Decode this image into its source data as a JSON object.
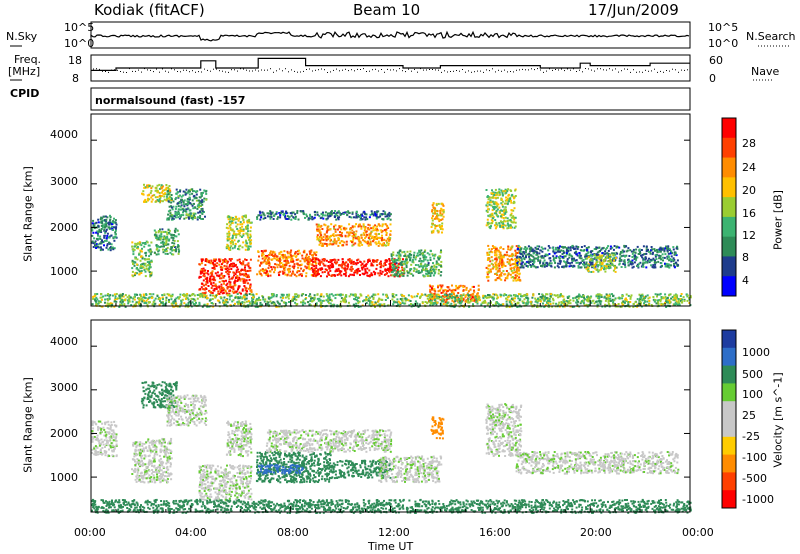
{
  "header": {
    "station": "Kodiak (fitACF)",
    "beam": "Beam 10",
    "date": "17/Jun/2009"
  },
  "summary": {
    "nsky_label": "N.Sky",
    "nsky_ticks": [
      "10^5",
      "10^0"
    ],
    "nsearch_label": "N.Search",
    "nsearch_ticks": [
      "10^5",
      "10^0"
    ],
    "freq_label_1": "Freq.",
    "freq_label_2": "[MHz]",
    "freq_ticks": [
      "18",
      "8"
    ],
    "nave_label": "Nave",
    "nave_ticks": [
      "60",
      "0"
    ],
    "cpid_label": "CPID",
    "cpid_text": "normalsound (fast) -157"
  },
  "power_panel": {
    "ylabel": "Slant Range [km]",
    "yticks": [
      "4000",
      "3000",
      "2000",
      "1000"
    ],
    "colorbar_label": "Power [dB]",
    "colorbar_ticks": [
      "28",
      "24",
      "20",
      "16",
      "12",
      "8",
      "4"
    ],
    "colorbar_colors": [
      "#ff0000",
      "#ff4000",
      "#ff8c00",
      "#ffc000",
      "#9acd32",
      "#3cb371",
      "#2e8b57",
      "#1e3c8c",
      "#0000ff"
    ]
  },
  "velocity_panel": {
    "ylabel": "Slant Range [km]",
    "yticks": [
      "4000",
      "3000",
      "2000",
      "1000"
    ],
    "colorbar_label": "Velocity [m s^-1]",
    "colorbar_ticks": [
      "1000",
      "500",
      "100",
      "25",
      "-25",
      "-100",
      "-500",
      "-1000"
    ],
    "colorbar_colors": [
      "#1e3ca0",
      "#2e6ec8",
      "#2e8b57",
      "#66cc33",
      "#c8c8c8",
      "#c8c8c8",
      "#ffcc00",
      "#ff8c00",
      "#ff4000",
      "#ff0000"
    ]
  },
  "xaxis": {
    "label": "Time UT",
    "ticks": [
      "00:00",
      "04:00",
      "08:00",
      "12:00",
      "16:00",
      "20:00",
      "00:00"
    ]
  },
  "chart_data": [
    {
      "type": "heatmap",
      "name": "power",
      "xlabel": "Time UT",
      "ylabel": "Slant Range [km]",
      "xlim": [
        0,
        24
      ],
      "ylim": [
        200,
        4600
      ],
      "colorbar": "Power [dB]",
      "crange": [
        0,
        32
      ],
      "regions": [
        {
          "t": [
            0.0,
            1.0
          ],
          "r": [
            1500,
            2300
          ],
          "db": 8
        },
        {
          "t": [
            1.6,
            2.4
          ],
          "r": [
            900,
            1700
          ],
          "db": 14
        },
        {
          "t": [
            2.0,
            3.2
          ],
          "r": [
            2600,
            3000
          ],
          "db": 18
        },
        {
          "t": [
            2.5,
            3.5
          ],
          "r": [
            1400,
            2000
          ],
          "db": 12
        },
        {
          "t": [
            3.0,
            4.6
          ],
          "r": [
            2200,
            2900
          ],
          "db": 10
        },
        {
          "t": [
            4.3,
            6.4
          ],
          "r": [
            500,
            1300
          ],
          "db": 28
        },
        {
          "t": [
            5.4,
            6.4
          ],
          "r": [
            1500,
            2300
          ],
          "db": 16
        },
        {
          "t": [
            6.6,
            9.0
          ],
          "r": [
            900,
            1500
          ],
          "db": 24
        },
        {
          "t": [
            6.6,
            12.0
          ],
          "r": [
            2200,
            2400
          ],
          "db": 8
        },
        {
          "t": [
            8.8,
            12.5
          ],
          "r": [
            900,
            1300
          ],
          "db": 30
        },
        {
          "t": [
            9.0,
            12.0
          ],
          "r": [
            1600,
            2100
          ],
          "db": 22
        },
        {
          "t": [
            12.0,
            14.0
          ],
          "r": [
            900,
            1500
          ],
          "db": 12
        },
        {
          "t": [
            13.6,
            14.1
          ],
          "r": [
            1900,
            2600
          ],
          "db": 20
        },
        {
          "t": [
            13.5,
            15.5
          ],
          "r": [
            300,
            700
          ],
          "db": 24
        },
        {
          "t": [
            15.8,
            17.2
          ],
          "r": [
            800,
            1600
          ],
          "db": 22
        },
        {
          "t": [
            15.8,
            17.0
          ],
          "r": [
            2000,
            2900
          ],
          "db": 16
        },
        {
          "t": [
            17.0,
            23.5
          ],
          "r": [
            1100,
            1600
          ],
          "db": 8
        },
        {
          "t": [
            19.8,
            21.0
          ],
          "r": [
            1000,
            1400
          ],
          "db": 16
        },
        {
          "t": [
            0.0,
            24.0
          ],
          "r": [
            200,
            500
          ],
          "db": 14
        }
      ]
    },
    {
      "type": "heatmap",
      "name": "velocity",
      "xlabel": "Time UT",
      "ylabel": "Slant Range [km]",
      "xlim": [
        0,
        24
      ],
      "ylim": [
        200,
        4600
      ],
      "colorbar": "Velocity [m s^-1]",
      "regions": [
        {
          "t": [
            0.0,
            1.0
          ],
          "r": [
            1500,
            2300
          ],
          "v": 10
        },
        {
          "t": [
            1.6,
            3.2
          ],
          "r": [
            900,
            1900
          ],
          "v": 10
        },
        {
          "t": [
            2.0,
            3.4
          ],
          "r": [
            2600,
            3200
          ],
          "v": 150
        },
        {
          "t": [
            3.0,
            4.6
          ],
          "r": [
            2200,
            2900
          ],
          "v": 10
        },
        {
          "t": [
            4.3,
            6.4
          ],
          "r": [
            500,
            1300
          ],
          "v": 10
        },
        {
          "t": [
            5.4,
            6.4
          ],
          "r": [
            1500,
            2300
          ],
          "v": 10
        },
        {
          "t": [
            6.6,
            9.6
          ],
          "r": [
            900,
            1600
          ],
          "v": 180
        },
        {
          "t": [
            6.6,
            8.5
          ],
          "r": [
            1100,
            1300
          ],
          "v": 600
        },
        {
          "t": [
            7.0,
            12.0
          ],
          "r": [
            1600,
            2100
          ],
          "v": 10
        },
        {
          "t": [
            9.5,
            12.0
          ],
          "r": [
            1000,
            1400
          ],
          "v": 150
        },
        {
          "t": [
            11.5,
            14.0
          ],
          "r": [
            900,
            1500
          ],
          "v": 10
        },
        {
          "t": [
            13.6,
            14.1
          ],
          "r": [
            1900,
            2400
          ],
          "v": -150
        },
        {
          "t": [
            15.8,
            17.2
          ],
          "r": [
            1500,
            2700
          ],
          "v": 10
        },
        {
          "t": [
            17.0,
            23.5
          ],
          "r": [
            1100,
            1600
          ],
          "v": 10
        },
        {
          "t": [
            0.0,
            24.0
          ],
          "r": [
            200,
            500
          ],
          "v": 150
        }
      ]
    },
    {
      "type": "line",
      "name": "frequency",
      "ylabel": "Freq. [MHz]",
      "ylim": [
        8,
        18
      ],
      "x": [
        0,
        1.0,
        1.0,
        4.4,
        4.4,
        5.0,
        5.0,
        6.7,
        6.7,
        8.6,
        8.6,
        12.5,
        12.5,
        14.0,
        14.0,
        18.0,
        18.0,
        19.6,
        19.6,
        20.0,
        20.0,
        22.4,
        22.4,
        24
      ],
      "values": [
        12,
        12,
        13,
        13,
        16,
        16,
        13,
        13,
        17,
        17,
        14,
        14,
        13,
        13,
        14,
        14,
        13,
        13,
        15,
        15,
        14,
        14,
        15,
        15
      ]
    }
  ]
}
